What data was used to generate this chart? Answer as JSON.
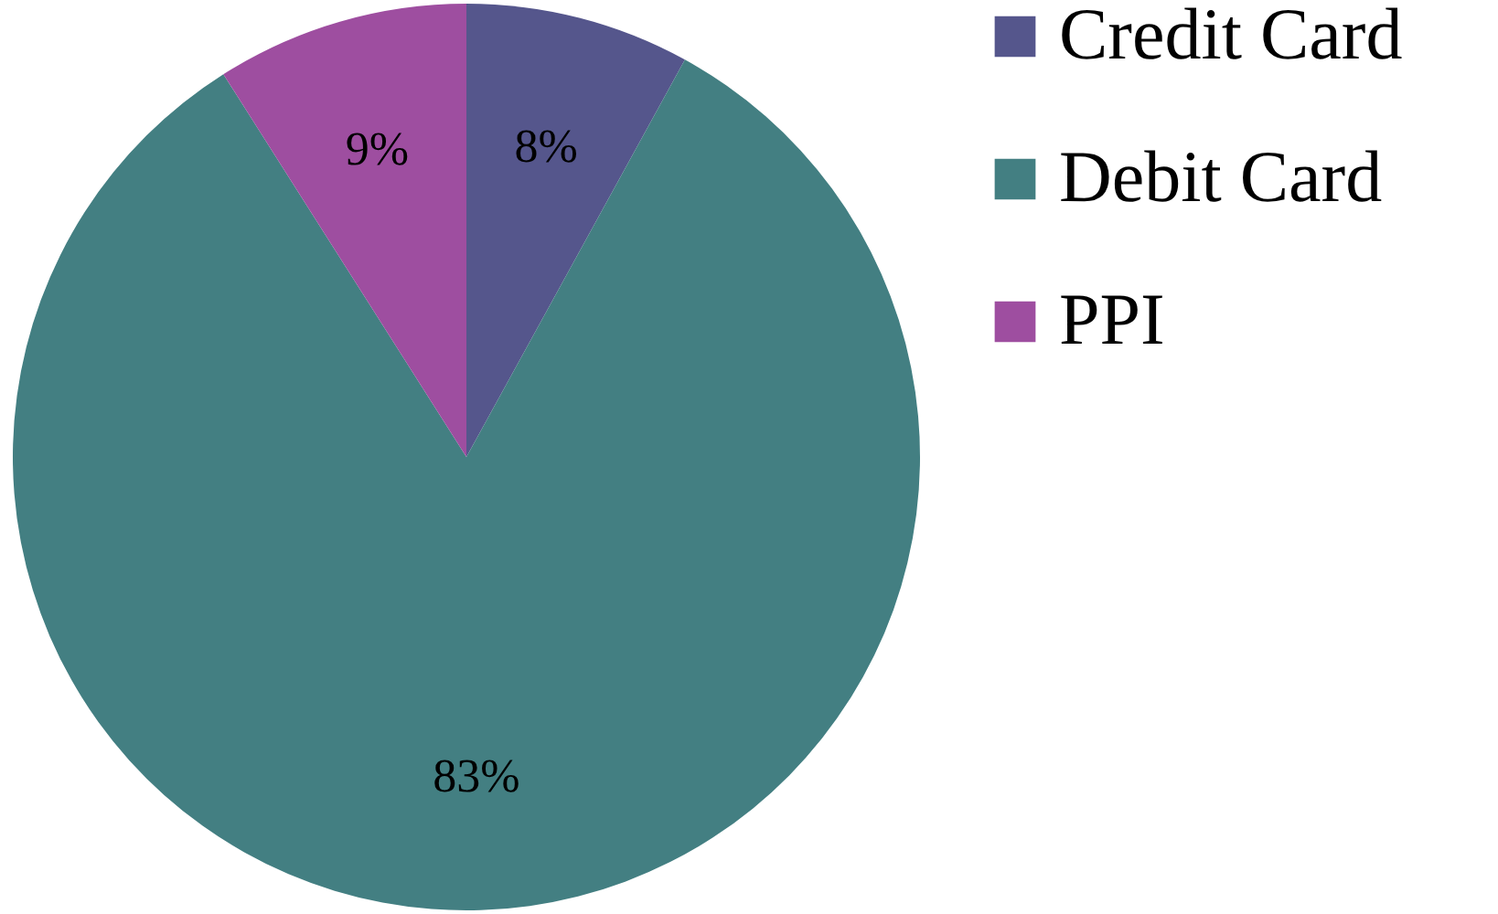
{
  "chart_data": {
    "type": "pie",
    "categories": [
      "Credit Card",
      "Debit Card",
      "PPI"
    ],
    "values": [
      8,
      83,
      9
    ],
    "colors": [
      "#55568c",
      "#437f82",
      "#9e4ea0"
    ],
    "value_labels": [
      "8%",
      "83%",
      "9%"
    ],
    "legend": "right"
  }
}
